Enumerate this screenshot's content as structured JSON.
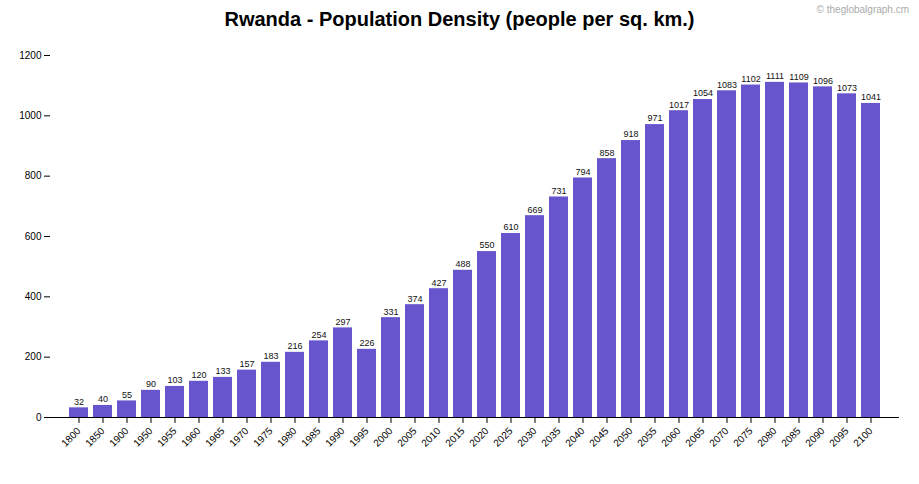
{
  "chart_data": {
    "type": "bar",
    "title": "Rwanda - Population Density (people per sq. km.)",
    "categories": [
      "1800",
      "1850",
      "1900",
      "1950",
      "1955",
      "1960",
      "1965",
      "1970",
      "1975",
      "1980",
      "1985",
      "1990",
      "1995",
      "2000",
      "2005",
      "2010",
      "2015",
      "2020",
      "2025",
      "2030",
      "2035",
      "2040",
      "2045",
      "2050",
      "2055",
      "2060",
      "2065",
      "2070",
      "2075",
      "2080",
      "2085",
      "2090",
      "2095",
      "2100"
    ],
    "values": [
      32,
      40,
      55,
      90,
      103,
      120,
      133,
      157,
      183,
      216,
      254,
      297,
      226,
      331,
      374,
      427,
      488,
      550,
      610,
      669,
      731,
      794,
      858,
      918,
      971,
      1017,
      1054,
      1083,
      1102,
      1111,
      1109,
      1096,
      1073,
      1041
    ],
    "color": "#6655cc",
    "ylim": [
      0,
      1200
    ],
    "yticks": [
      0,
      200,
      400,
      600,
      800,
      1000,
      1200
    ],
    "grid": false,
    "data_labels": true,
    "annotations": [
      "© theglobalgraph.cm"
    ]
  }
}
